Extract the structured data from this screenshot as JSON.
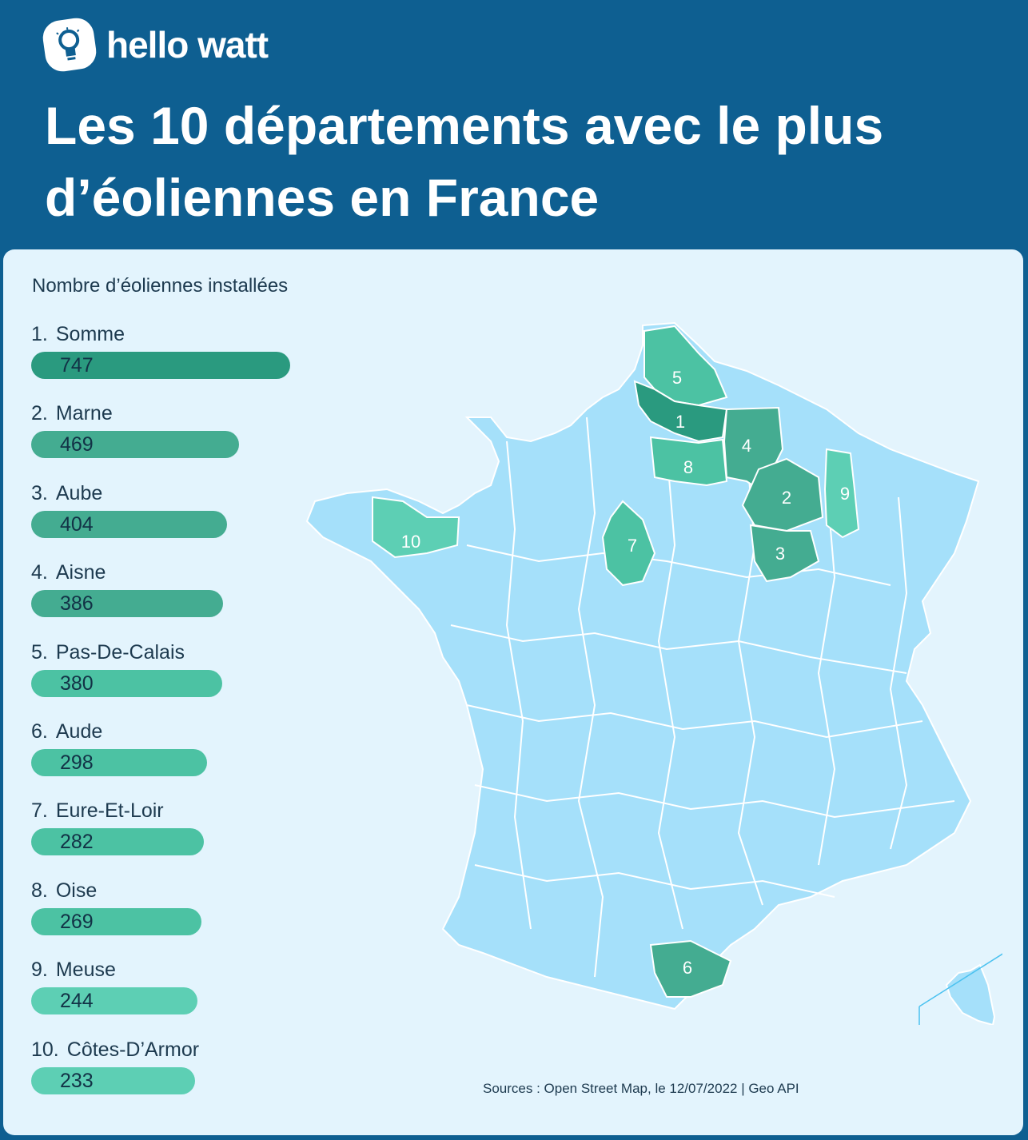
{
  "brand": {
    "name": "hello watt",
    "logo_icon": "lightbulb-icon"
  },
  "title_lines": [
    "Les 10 départements avec le plus",
    "d’éoliennes en France"
  ],
  "ranking": {
    "title": "Nombre d’éoliennes installées",
    "items": [
      {
        "rank": "1.",
        "name": "Somme",
        "value": 747,
        "color": "#2a9a7f"
      },
      {
        "rank": "2.",
        "name": "Marne",
        "value": 469,
        "color": "#44ac91"
      },
      {
        "rank": "3.",
        "name": "Aube",
        "value": 404,
        "color": "#44ac91"
      },
      {
        "rank": "4.",
        "name": "Aisne",
        "value": 386,
        "color": "#44ac91"
      },
      {
        "rank": "5.",
        "name": "Pas-De-Calais",
        "value": 380,
        "color": "#4cc2a3"
      },
      {
        "rank": "6.",
        "name": "Aude",
        "value": 298,
        "color": "#4cc2a3"
      },
      {
        "rank": "7.",
        "name": "Eure-Et-Loir",
        "value": 282,
        "color": "#4cc2a3"
      },
      {
        "rank": "8.",
        "name": "Oise",
        "value": 269,
        "color": "#4cc2a3"
      },
      {
        "rank": "9.",
        "name": "Meuse",
        "value": 244,
        "color": "#5dcfb4"
      },
      {
        "rank": "10.",
        "name": "Côtes-D’Armor",
        "value": 233,
        "color": "#5dcfb4"
      }
    ]
  },
  "map": {
    "base_color": "#a5e0fa",
    "border_color": "#ffffff",
    "markers": [
      "1",
      "2",
      "3",
      "4",
      "5",
      "6",
      "7",
      "8",
      "9",
      "10"
    ]
  },
  "source": "Sources : Open Street Map, le 12/07/2022 | Geo API"
}
